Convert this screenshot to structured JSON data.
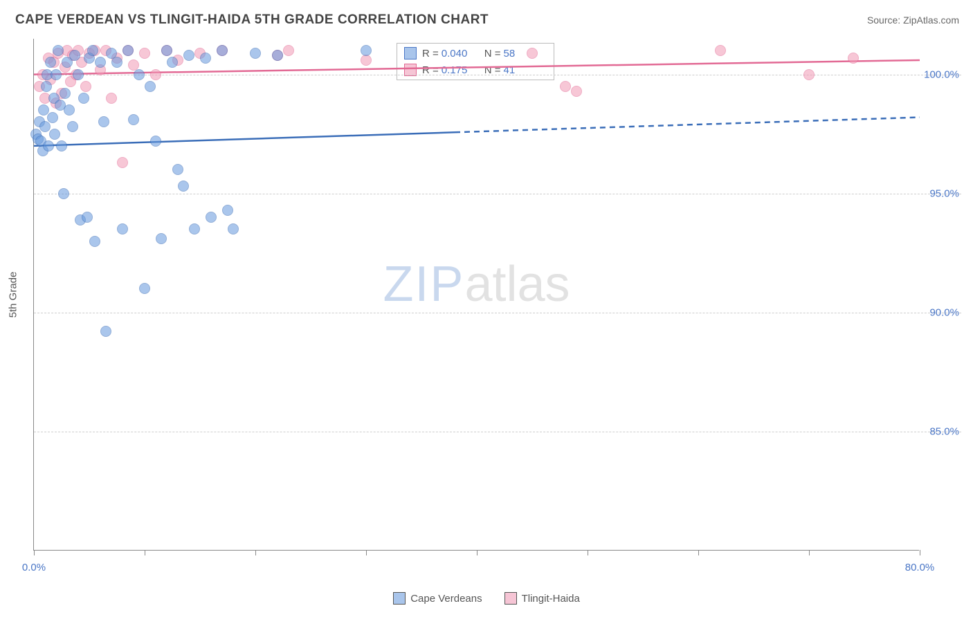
{
  "header": {
    "title": "CAPE VERDEAN VS TLINGIT-HAIDA 5TH GRADE CORRELATION CHART",
    "source": "Source: ZipAtlas.com"
  },
  "chart": {
    "type": "scatter",
    "y_axis_label": "5th Grade",
    "background_color": "#ffffff",
    "grid_color": "#cccccc",
    "axis_color": "#888888",
    "tick_label_color": "#4a76c6",
    "xlim": [
      0,
      80
    ],
    "ylim": [
      80,
      101.5
    ],
    "x_ticks": [
      0,
      10,
      20,
      30,
      40,
      50,
      60,
      70,
      80
    ],
    "x_tick_labels": {
      "0": "0.0%",
      "80": "80.0%"
    },
    "y_ticks": [
      85,
      90,
      95,
      100
    ],
    "y_tick_labels": {
      "85": "85.0%",
      "90": "90.0%",
      "95": "95.0%",
      "100": "100.0%"
    },
    "watermark": {
      "zip": "ZIP",
      "atlas": "atlas",
      "zip_color": "#c9d8ee",
      "atlas_color": "#e2e2e2"
    },
    "series": {
      "blue": {
        "label": "Cape Verdeans",
        "marker_color": "#6699dd",
        "marker_border": "#3a6db8",
        "trend_color": "#3a6db8",
        "trend_solid_end_x": 38,
        "trend_y_start": 97.0,
        "trend_y_end": 98.2,
        "R": "0.040",
        "N": "58",
        "points": [
          [
            0.2,
            97.5
          ],
          [
            0.4,
            97.3
          ],
          [
            0.5,
            98.0
          ],
          [
            0.6,
            97.2
          ],
          [
            0.8,
            96.8
          ],
          [
            0.9,
            98.5
          ],
          [
            1.0,
            97.8
          ],
          [
            1.1,
            99.5
          ],
          [
            1.2,
            100.0
          ],
          [
            1.3,
            97.0
          ],
          [
            1.5,
            100.5
          ],
          [
            1.7,
            98.2
          ],
          [
            1.8,
            99.0
          ],
          [
            1.9,
            97.5
          ],
          [
            2.0,
            100.0
          ],
          [
            2.2,
            101.0
          ],
          [
            2.4,
            98.7
          ],
          [
            2.5,
            97.0
          ],
          [
            2.7,
            95.0
          ],
          [
            2.8,
            99.2
          ],
          [
            3.0,
            100.5
          ],
          [
            3.2,
            98.5
          ],
          [
            3.5,
            97.8
          ],
          [
            3.7,
            100.8
          ],
          [
            4.0,
            100.0
          ],
          [
            4.2,
            93.9
          ],
          [
            4.5,
            99.0
          ],
          [
            4.8,
            94.0
          ],
          [
            5.0,
            100.7
          ],
          [
            5.3,
            101.0
          ],
          [
            5.5,
            93.0
          ],
          [
            6.0,
            100.5
          ],
          [
            6.3,
            98.0
          ],
          [
            6.5,
            89.2
          ],
          [
            7.0,
            100.9
          ],
          [
            7.5,
            100.5
          ],
          [
            8.0,
            93.5
          ],
          [
            8.5,
            101.0
          ],
          [
            9.0,
            98.1
          ],
          [
            9.5,
            100.0
          ],
          [
            10.0,
            91.0
          ],
          [
            10.5,
            99.5
          ],
          [
            11.0,
            97.2
          ],
          [
            11.5,
            93.1
          ],
          [
            12.0,
            101.0
          ],
          [
            12.5,
            100.5
          ],
          [
            13.0,
            96.0
          ],
          [
            13.5,
            95.3
          ],
          [
            14.0,
            100.8
          ],
          [
            14.5,
            93.5
          ],
          [
            15.5,
            100.7
          ],
          [
            16.0,
            94.0
          ],
          [
            17.0,
            101.0
          ],
          [
            17.5,
            94.3
          ],
          [
            18.0,
            93.5
          ],
          [
            20.0,
            100.9
          ],
          [
            22.0,
            100.8
          ],
          [
            30.0,
            101.0
          ]
        ]
      },
      "pink": {
        "label": "Tlingit-Haida",
        "marker_color": "#f19ab6",
        "marker_border": "#e26994",
        "trend_color": "#e26994",
        "trend_solid_end_x": 80,
        "trend_y_start": 100.0,
        "trend_y_end": 100.6,
        "R": "0.175",
        "N": "41",
        "points": [
          [
            0.5,
            99.5
          ],
          [
            0.8,
            100.0
          ],
          [
            1.0,
            99.0
          ],
          [
            1.3,
            100.7
          ],
          [
            1.5,
            99.8
          ],
          [
            1.8,
            100.5
          ],
          [
            2.0,
            98.8
          ],
          [
            2.2,
            100.9
          ],
          [
            2.5,
            99.2
          ],
          [
            2.8,
            100.3
          ],
          [
            3.0,
            101.0
          ],
          [
            3.3,
            99.7
          ],
          [
            3.5,
            100.8
          ],
          [
            3.8,
            100.0
          ],
          [
            4.0,
            101.0
          ],
          [
            4.3,
            100.5
          ],
          [
            4.7,
            99.5
          ],
          [
            5.0,
            100.9
          ],
          [
            5.5,
            101.0
          ],
          [
            6.0,
            100.2
          ],
          [
            6.5,
            101.0
          ],
          [
            7.0,
            99.0
          ],
          [
            7.5,
            100.7
          ],
          [
            8.0,
            96.3
          ],
          [
            8.5,
            101.0
          ],
          [
            9.0,
            100.4
          ],
          [
            10.0,
            100.9
          ],
          [
            11.0,
            100.0
          ],
          [
            12.0,
            101.0
          ],
          [
            13.0,
            100.6
          ],
          [
            15.0,
            100.9
          ],
          [
            17.0,
            101.0
          ],
          [
            22.0,
            100.8
          ],
          [
            23.0,
            101.0
          ],
          [
            30.0,
            100.6
          ],
          [
            45.0,
            100.9
          ],
          [
            48.0,
            99.5
          ],
          [
            49.0,
            99.3
          ],
          [
            62.0,
            101.0
          ],
          [
            70.0,
            100.0
          ],
          [
            74.0,
            100.7
          ]
        ]
      }
    }
  },
  "stats_box": {
    "R_label": "R =",
    "N_label": "N ="
  },
  "legend": {
    "items": [
      "blue",
      "pink"
    ]
  }
}
